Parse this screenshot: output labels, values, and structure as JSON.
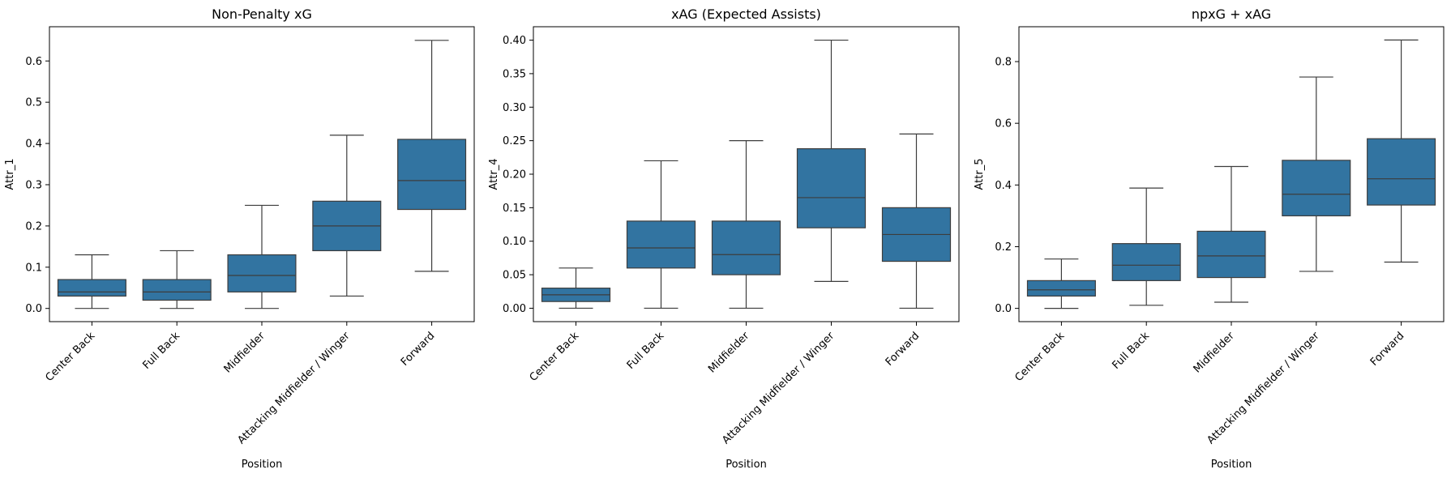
{
  "chart_data": [
    {
      "type": "box",
      "title": "Non-Penalty xG",
      "xlabel": "Position",
      "ylabel": "Attr_1",
      "ylim": [
        -0.032,
        0.683
      ],
      "yticks": [
        0.0,
        0.1,
        0.2,
        0.3,
        0.4,
        0.5,
        0.6
      ],
      "ytick_labels": [
        "0.0",
        "0.1",
        "0.2",
        "0.3",
        "0.4",
        "0.5",
        "0.6"
      ],
      "categories": [
        "Center Back",
        "Full Back",
        "Midfielder",
        "Attacking Midfielder / Winger",
        "Forward"
      ],
      "boxes": [
        {
          "min": 0.0,
          "q1": 0.03,
          "median": 0.04,
          "q3": 0.07,
          "max": 0.13
        },
        {
          "min": 0.0,
          "q1": 0.02,
          "median": 0.04,
          "q3": 0.07,
          "max": 0.14
        },
        {
          "min": 0.0,
          "q1": 0.04,
          "median": 0.08,
          "q3": 0.13,
          "max": 0.25
        },
        {
          "min": 0.03,
          "q1": 0.14,
          "median": 0.2,
          "q3": 0.26,
          "max": 0.42
        },
        {
          "min": 0.09,
          "q1": 0.24,
          "median": 0.31,
          "q3": 0.41,
          "max": 0.65
        }
      ]
    },
    {
      "type": "box",
      "title": "xAG (Expected Assists)",
      "xlabel": "Position",
      "ylabel": "Attr_4",
      "ylim": [
        -0.02,
        0.42
      ],
      "yticks": [
        0.0,
        0.05,
        0.1,
        0.15,
        0.2,
        0.25,
        0.3,
        0.35,
        0.4
      ],
      "ytick_labels": [
        "0.00",
        "0.05",
        "0.10",
        "0.15",
        "0.20",
        "0.25",
        "0.30",
        "0.35",
        "0.40"
      ],
      "categories": [
        "Center Back",
        "Full Back",
        "Midfielder",
        "Attacking Midfielder / Winger",
        "Forward"
      ],
      "boxes": [
        {
          "min": 0.0,
          "q1": 0.01,
          "median": 0.02,
          "q3": 0.03,
          "max": 0.06
        },
        {
          "min": 0.0,
          "q1": 0.06,
          "median": 0.09,
          "q3": 0.13,
          "max": 0.22
        },
        {
          "min": 0.0,
          "q1": 0.05,
          "median": 0.08,
          "q3": 0.13,
          "max": 0.25
        },
        {
          "min": 0.04,
          "q1": 0.12,
          "median": 0.165,
          "q3": 0.238,
          "max": 0.4
        },
        {
          "min": 0.0,
          "q1": 0.07,
          "median": 0.11,
          "q3": 0.15,
          "max": 0.26
        }
      ]
    },
    {
      "type": "box",
      "title": "npxG + xAG",
      "xlabel": "Position",
      "ylabel": "Attr_5",
      "ylim": [
        -0.043,
        0.913
      ],
      "yticks": [
        0.0,
        0.2,
        0.4,
        0.6,
        0.8
      ],
      "ytick_labels": [
        "0.0",
        "0.2",
        "0.4",
        "0.6",
        "0.8"
      ],
      "categories": [
        "Center Back",
        "Full Back",
        "Midfielder",
        "Attacking Midfielder / Winger",
        "Forward"
      ],
      "boxes": [
        {
          "min": 0.0,
          "q1": 0.04,
          "median": 0.06,
          "q3": 0.09,
          "max": 0.16
        },
        {
          "min": 0.01,
          "q1": 0.09,
          "median": 0.14,
          "q3": 0.21,
          "max": 0.39
        },
        {
          "min": 0.02,
          "q1": 0.1,
          "median": 0.17,
          "q3": 0.25,
          "max": 0.46
        },
        {
          "min": 0.12,
          "q1": 0.3,
          "median": 0.37,
          "q3": 0.48,
          "max": 0.75
        },
        {
          "min": 0.15,
          "q1": 0.335,
          "median": 0.42,
          "q3": 0.55,
          "max": 0.87
        }
      ]
    }
  ],
  "colors": {
    "box_fill": "#3274a1",
    "line": "#3d3d3d",
    "axis": "#000000"
  }
}
